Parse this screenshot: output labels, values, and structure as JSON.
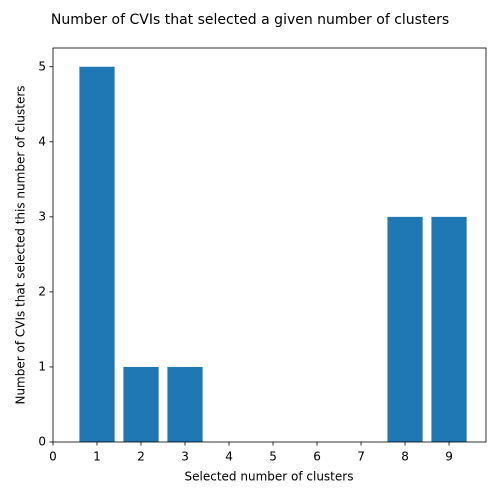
{
  "chart_data": {
    "type": "bar",
    "title": "Number of CVIs that selected a given number of clusters",
    "x_label": "Selected number of clusters",
    "y_label": "Number of CVIs that selected this number of clusters",
    "x": [
      1,
      2,
      3,
      8,
      9
    ],
    "values": [
      5,
      1,
      1,
      3,
      3
    ],
    "color": "#1f77b4",
    "xlim": [
      0,
      9.84
    ],
    "xticks": [
      0,
      1,
      2,
      3,
      4,
      5,
      6,
      7,
      8,
      9
    ],
    "ylim": [
      0,
      5.25
    ],
    "yticks": [
      0,
      1,
      2,
      3,
      4,
      5
    ],
    "grid": false
  }
}
